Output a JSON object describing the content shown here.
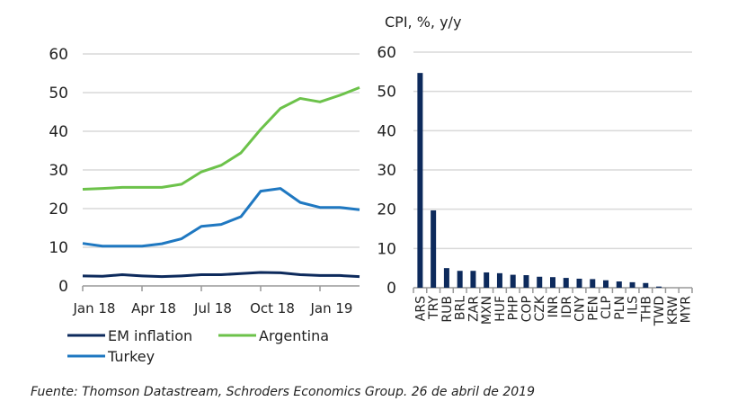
{
  "chart_data": [
    {
      "type": "line",
      "title": "",
      "xlabel": "",
      "ylabel": "",
      "ylim": [
        0,
        60
      ],
      "yticks": [
        0,
        10,
        20,
        30,
        40,
        50,
        60
      ],
      "x": [
        "Jan 18",
        "Feb 18",
        "Mar 18",
        "Apr 18",
        "May 18",
        "Jun 18",
        "Jul 18",
        "Aug 18",
        "Sep 18",
        "Oct 18",
        "Nov 18",
        "Dec 18",
        "Jan 19",
        "Feb 19",
        "Mar 19"
      ],
      "xtick_labels": [
        "Jan 18",
        "Apr 18",
        "Jul 18",
        "Oct 18",
        "Jan 19"
      ],
      "grid": true,
      "legend_position": "bottom",
      "series": [
        {
          "name": "EM inflation",
          "color": "#0d2a5c",
          "values": [
            2.6,
            2.5,
            2.9,
            2.6,
            2.4,
            2.6,
            2.9,
            2.9,
            3.2,
            3.5,
            3.4,
            2.9,
            2.7,
            2.7,
            2.4
          ]
        },
        {
          "name": "Argentina",
          "color": "#6cc24a",
          "values": [
            25.0,
            25.2,
            25.5,
            25.5,
            25.5,
            26.3,
            29.5,
            31.2,
            34.4,
            40.5,
            45.9,
            48.5,
            47.6,
            49.3,
            51.3
          ]
        },
        {
          "name": "Turkey",
          "color": "#1f78c1",
          "values": [
            11.0,
            10.3,
            10.3,
            10.3,
            10.9,
            12.2,
            15.4,
            15.9,
            17.9,
            24.5,
            25.2,
            21.6,
            20.3,
            20.3,
            19.7
          ]
        }
      ]
    },
    {
      "type": "bar",
      "title": "CPI, %, y/y",
      "xlabel": "",
      "ylabel": "",
      "ylim": [
        0,
        60
      ],
      "yticks": [
        0,
        10,
        20,
        30,
        40,
        50,
        60
      ],
      "grid": true,
      "color": "#0d2a5c",
      "categories": [
        "ARS",
        "TRY",
        "RUB",
        "BRL",
        "ZAR",
        "MXN",
        "HUF",
        "PHP",
        "COP",
        "CZK",
        "INR",
        "IDR",
        "CNY",
        "PEN",
        "CLP",
        "PLN",
        "ILS",
        "THB",
        "TWD",
        "KRW",
        "MYR"
      ],
      "values": [
        54.7,
        19.7,
        5.0,
        4.3,
        4.3,
        3.9,
        3.7,
        3.3,
        3.2,
        2.8,
        2.7,
        2.5,
        2.3,
        2.2,
        1.9,
        1.6,
        1.4,
        1.2,
        0.3,
        0.0,
        0.0
      ]
    }
  ],
  "source": "Fuente: Thomson Datastream, Schroders Economics Group. 26 de abril de 2019"
}
